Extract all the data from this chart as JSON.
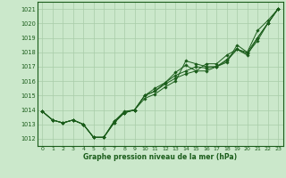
{
  "background_color": "#cbe8cb",
  "grid_color": "#a8cca8",
  "line_color": "#1a5c1a",
  "marker_color": "#1a5c1a",
  "text_color": "#1a5c1a",
  "xlabel": "Graphe pression niveau de la mer (hPa)",
  "ylim": [
    1011.5,
    1021.5
  ],
  "xlim": [
    -0.5,
    23.5
  ],
  "yticks": [
    1012,
    1013,
    1014,
    1015,
    1016,
    1017,
    1018,
    1019,
    1020,
    1021
  ],
  "xticks": [
    0,
    1,
    2,
    3,
    4,
    5,
    6,
    7,
    8,
    9,
    10,
    11,
    12,
    13,
    14,
    15,
    16,
    17,
    18,
    19,
    20,
    21,
    22,
    23
  ],
  "series": [
    [
      1013.9,
      1013.3,
      1013.1,
      1013.3,
      1013.0,
      1012.1,
      1012.1,
      1013.1,
      1013.8,
      1014.0,
      1015.0,
      1015.5,
      1015.9,
      1016.4,
      1016.7,
      1017.0,
      1016.9,
      1017.0,
      1017.3,
      1018.5,
      1018.0,
      1019.5,
      1020.2,
      1021.0
    ],
    [
      1013.9,
      1013.3,
      1013.1,
      1013.3,
      1013.0,
      1012.1,
      1012.1,
      1013.1,
      1013.8,
      1014.0,
      1014.8,
      1015.1,
      1015.6,
      1016.0,
      1017.4,
      1017.2,
      1017.0,
      1017.0,
      1017.4,
      1018.2,
      1017.8,
      1019.0,
      1020.0,
      1021.0
    ],
    [
      1013.9,
      1013.3,
      1013.1,
      1013.3,
      1013.0,
      1012.1,
      1012.1,
      1013.2,
      1013.8,
      1014.0,
      1015.0,
      1015.3,
      1015.9,
      1016.6,
      1017.1,
      1016.7,
      1016.7,
      1017.0,
      1017.5,
      1018.2,
      1017.9,
      1018.8,
      1020.0,
      1021.0
    ],
    [
      1013.9,
      1013.3,
      1013.1,
      1013.3,
      1013.0,
      1012.1,
      1012.1,
      1013.2,
      1013.9,
      1014.0,
      1015.0,
      1015.3,
      1015.8,
      1016.2,
      1016.5,
      1016.7,
      1017.2,
      1017.2,
      1017.8,
      1018.2,
      1018.0,
      1019.0,
      1020.0,
      1021.0
    ]
  ]
}
